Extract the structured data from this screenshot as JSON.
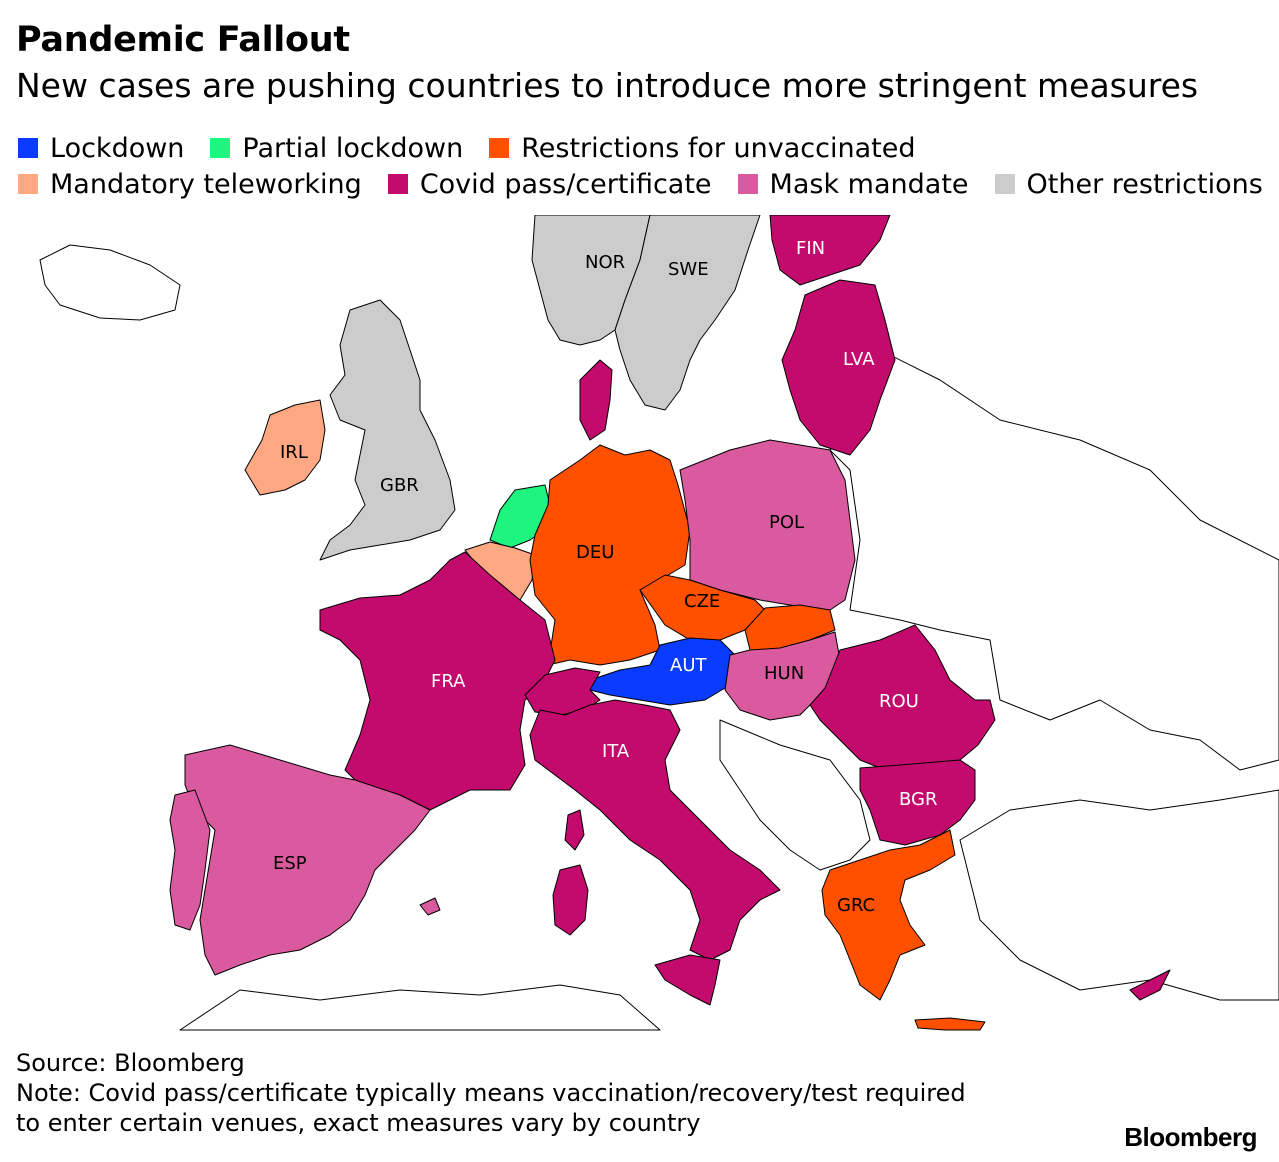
{
  "title": "Pandemic Fallout",
  "subtitle": "New cases are pushing countries to introduce more stringent measures",
  "legend": [
    {
      "label": "Lockdown",
      "color": "#0a3cff"
    },
    {
      "label": "Partial lockdown",
      "color": "#1ef57f"
    },
    {
      "label": "Restrictions for unvaccinated",
      "color": "#ff5000"
    },
    {
      "label": "Mandatory teleworking",
      "color": "#fda883"
    },
    {
      "label": "Covid pass/certificate",
      "color": "#c20b6c"
    },
    {
      "label": "Mask mandate",
      "color": "#d95a9e"
    },
    {
      "label": "Other restrictions",
      "color": "#cccccc"
    }
  ],
  "countries": [
    {
      "code": "NOR",
      "measure": "Other restrictions"
    },
    {
      "code": "SWE",
      "measure": "Other restrictions"
    },
    {
      "code": "FIN",
      "measure": "Covid pass/certificate"
    },
    {
      "code": "LVA",
      "measure": "Covid pass/certificate"
    },
    {
      "code": "IRL",
      "measure": "Mandatory teleworking"
    },
    {
      "code": "GBR",
      "measure": "Other restrictions"
    },
    {
      "code": "DEU",
      "measure": "Restrictions for unvaccinated"
    },
    {
      "code": "POL",
      "measure": "Mask mandate"
    },
    {
      "code": "CZE",
      "measure": "Restrictions for unvaccinated"
    },
    {
      "code": "AUT",
      "measure": "Lockdown"
    },
    {
      "code": "HUN",
      "measure": "Mask mandate"
    },
    {
      "code": "FRA",
      "measure": "Covid pass/certificate"
    },
    {
      "code": "ROU",
      "measure": "Covid pass/certificate"
    },
    {
      "code": "ITA",
      "measure": "Covid pass/certificate"
    },
    {
      "code": "BGR",
      "measure": "Covid pass/certificate"
    },
    {
      "code": "ESP",
      "measure": "Mask mandate"
    },
    {
      "code": "GRC",
      "measure": "Restrictions for unvaccinated"
    }
  ],
  "footer": {
    "source": "Source: Bloomberg",
    "note_line1": "Note: Covid pass/certificate typically means vaccination/recovery/test required",
    "note_line2": "to enter certain venues, exact measures vary by country"
  },
  "logo": "Bloomberg"
}
